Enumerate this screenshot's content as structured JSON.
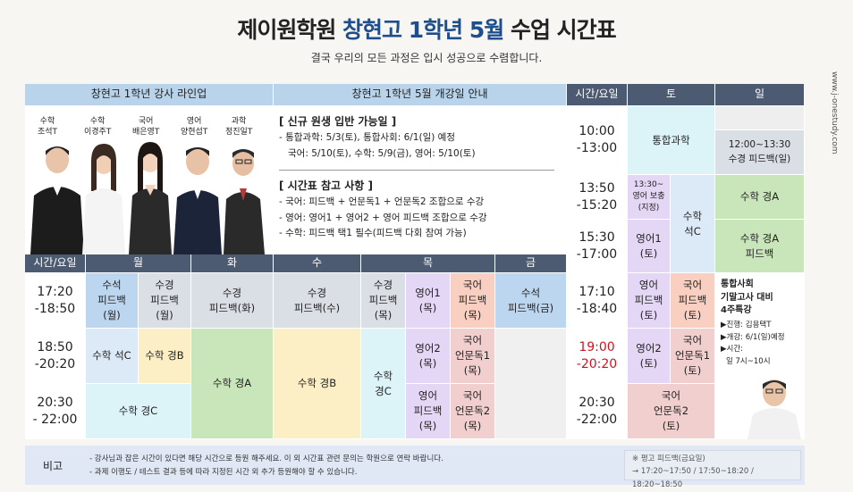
{
  "header": {
    "title_brand": "제이원학원",
    "title_highlight": "창현고 1학년 5월",
    "title_rest": "수업 시간표",
    "subtitle": "결국 우리의 모든 과정은 입시 성공으로 수렴합니다.",
    "side_url": "www.j-onestudy.com"
  },
  "lineup": {
    "heading": "창현고 1학년 강사 라인업",
    "teachers": [
      {
        "subject": "수학",
        "name": "조석T"
      },
      {
        "subject": "수학",
        "name": "이경주T"
      },
      {
        "subject": "국어",
        "name": "배은영T"
      },
      {
        "subject": "영어",
        "name": "양현섭T"
      },
      {
        "subject": "과학",
        "name": "정진일T"
      }
    ]
  },
  "notice": {
    "heading": "창현고 1학년 5월 개강일 안내",
    "section1_title": "[ 신규 원생 입반 가능일 ]",
    "section1_lines": [
      "- 통합과학: 5/3(토), 통합사회: 6/1(일) 예정",
      "국어: 5/10(토), 수학: 5/9(금), 영어: 5/10(토)"
    ],
    "section2_title": "[ 시간표 참고 사항 ]",
    "section2_lines": [
      "- 국어: 피드백 + 언문독1 + 언문독2 조합으로 수강",
      "- 영어: 영어1 + 영어2 + 영어 피드백 조합으로 수강",
      "- 수학: 피드백 택1 필수(피드백 다회 참여 가능)"
    ]
  },
  "weekday_headers": {
    "time": "시간/요일",
    "mon": "월",
    "tue": "화",
    "wed": "수",
    "thu": "목",
    "fri": "금"
  },
  "weekday_times": [
    {
      "start": "17:20",
      "end": "-18:50"
    },
    {
      "start": "18:50",
      "end": "-20:20"
    },
    {
      "start": "20:30",
      "end": "- 22:00"
    }
  ],
  "weekday_cells": {
    "mon_fb1": "수석\n피드백\n(월)",
    "mon_fb2": "수경\n피드백\n(월)",
    "tue_fb": "수경\n피드백(화)",
    "wed_fb": "수경\n피드백(수)",
    "thu_fb": "수경\n피드백\n(목)",
    "thu_eng1": "영어1\n(목)",
    "thu_kor_fb": "국어\n피드백\n(목)",
    "fri_fb": "수석\n피드백(금)",
    "mon_math_c": "수학 석C",
    "mon_math_b": "수학 경B",
    "tue_math_a": "수학 경A",
    "wed_math_b": "수학 경B",
    "thu_math_c": "수학\n경C",
    "thu_eng2": "영어2\n(목)",
    "thu_kor_r1": "국어\n언문독1\n(목)",
    "mon_math_c2": "수학 경C",
    "thu_eng_fb": "영어\n피드백\n(목)",
    "thu_kor_r2": "국어\n언문독2\n(목)"
  },
  "weekend_headers": {
    "time": "시간/요일",
    "sat": "토",
    "sun": "일"
  },
  "weekend_times": [
    {
      "start": "10:00",
      "end": "-13:00"
    },
    {
      "start": "13:50",
      "end": "-15:20"
    },
    {
      "start": "15:30",
      "end": "-17:00"
    },
    {
      "start": "17:10",
      "end": "-18:40"
    },
    {
      "start": "19:00",
      "end": "-20:20"
    },
    {
      "start": "20:30",
      "end": "-22:00"
    }
  ],
  "weekend_cells": {
    "sat_sci": "통합과학",
    "sat_eng_supp": "13:30~\n영어 보충\n(지정)",
    "sat_math_c": "수학\n석C",
    "sat_eng1_a": "영어1\n(토)",
    "sat_eng_fb": "영어\n피드백\n(토)",
    "sat_kor_fb": "국어\n피드백\n(토)",
    "sat_eng2": "영어2\n(토)",
    "sat_kor_r1": "국어\n언문독1\n(토)",
    "sat_kor_r2": "국어\n언문독2\n(토)",
    "sun_fb": "12:00~13:30\n수경 피드백(일)",
    "sun_math_a": "수학 경A",
    "sun_math_a_fb": "수학 경A\n피드백"
  },
  "special": {
    "title1": "통합사회",
    "title2": "기말고사 대비",
    "title3": "4주특강",
    "line1": "▶진행: 김용택T",
    "line2": "▶개강: 6/1(일)예정",
    "line3": "▶시간:",
    "line4": "일 7시~10시"
  },
  "footer": {
    "label": "비고",
    "note1": "- 강사님과 잡은 시간이 있다면 해당 시간으로 등원 해주세요. 이 외 시간표 관련 문의는 학원으로 연락 바랍니다.",
    "note2": "- 과제 이행도 / 테스트 결과 등에 따라 지정된 시간 외 추가 등원해야 할 수 있습니다.",
    "box_line1": "※ 평고 피드백(금요일)",
    "box_line2": "→ 17:20~17:50 / 17:50~18:20 / 18:20~18:50"
  }
}
